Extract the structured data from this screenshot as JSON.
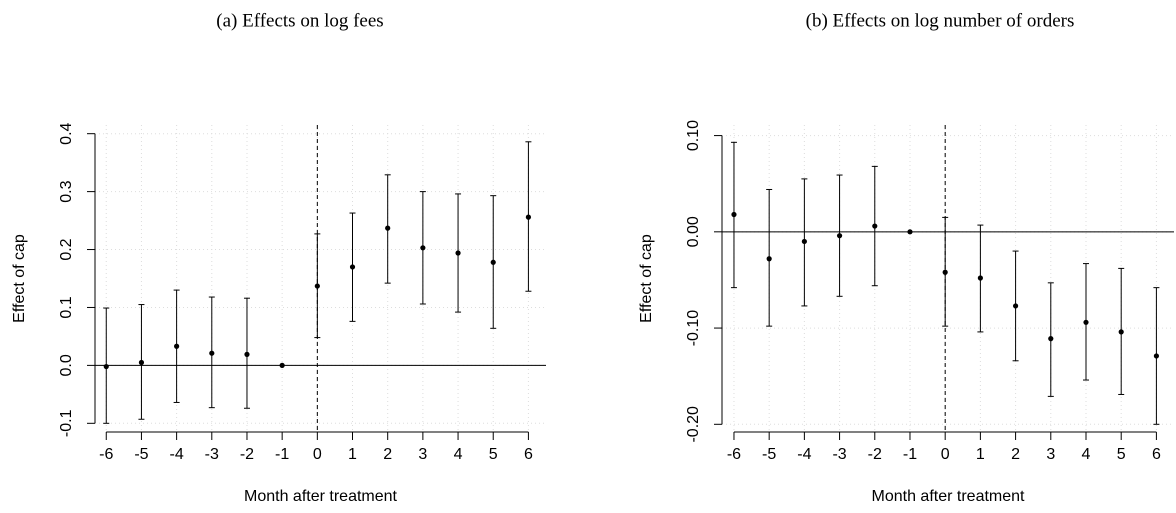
{
  "chart_data": [
    {
      "type": "errorbar",
      "title": "(a) Effects on log fees",
      "x_label": "Month after treatment",
      "y_label": "Effect of cap",
      "x": [
        -6,
        -5,
        -4,
        -3,
        -2,
        -1,
        0,
        1,
        2,
        3,
        4,
        5,
        6
      ],
      "values": [
        -0.002,
        0.005,
        0.033,
        0.021,
        0.019,
        0,
        0.137,
        0.17,
        0.237,
        0.203,
        0.194,
        0.178,
        0.256
      ],
      "lower": [
        -0.1,
        -0.093,
        -0.064,
        -0.073,
        -0.074,
        0,
        0.048,
        0.076,
        0.142,
        0.106,
        0.092,
        0.064,
        0.128
      ],
      "upper": [
        0.099,
        0.105,
        0.13,
        0.118,
        0.116,
        0,
        0.227,
        0.263,
        0.329,
        0.3,
        0.296,
        0.293,
        0.386
      ],
      "color": "#000000",
      "xlim": [
        -6.32,
        6.5
      ],
      "ylim": [
        -0.115,
        0.415
      ],
      "xticks": [
        -6,
        -5,
        -4,
        -3,
        -2,
        -1,
        0,
        1,
        2,
        3,
        4,
        5,
        6
      ],
      "yticks": [
        -0.1,
        {
          "value": 0,
          "label": "0.0"
        },
        0.1,
        0.2,
        0.3,
        0.4
      ],
      "hline": 0,
      "vline": 0,
      "grid": true
    },
    {
      "type": "errorbar",
      "title": "(b) Effects on log number of orders",
      "x_label": "Month after treatment",
      "y_label": "Effect of cap",
      "x": [
        -6,
        -5,
        -4,
        -3,
        -2,
        -1,
        0,
        1,
        2,
        3,
        4,
        5,
        6
      ],
      "values": [
        0.018,
        -0.028,
        -0.01,
        -0.004,
        0.006,
        0,
        -0.042,
        -0.048,
        -0.077,
        -0.111,
        -0.094,
        -0.104,
        -0.129
      ],
      "lower": [
        -0.058,
        -0.098,
        -0.077,
        -0.067,
        -0.056,
        0,
        -0.098,
        -0.104,
        -0.134,
        -0.171,
        -0.154,
        -0.169,
        -0.2
      ],
      "upper": [
        0.093,
        0.044,
        0.055,
        0.059,
        0.068,
        0,
        0.015,
        0.007,
        -0.02,
        -0.053,
        -0.033,
        -0.038,
        -0.058
      ],
      "color": "#000000",
      "xlim": [
        -6.34,
        6.5
      ],
      "ylim": [
        -0.208,
        0.111
      ],
      "xticks": [
        -6,
        -5,
        -4,
        -3,
        -2,
        -1,
        0,
        1,
        2,
        3,
        4,
        5,
        6
      ],
      "yticks": [
        {
          "value": -0.2,
          "label": "-0.20"
        },
        {
          "value": -0.1,
          "label": "-0.10"
        },
        {
          "value": 0,
          "label": "0.00"
        },
        {
          "value": 0.1,
          "label": "0.10"
        }
      ],
      "hline": 0,
      "vline": 0,
      "grid": true
    }
  ]
}
